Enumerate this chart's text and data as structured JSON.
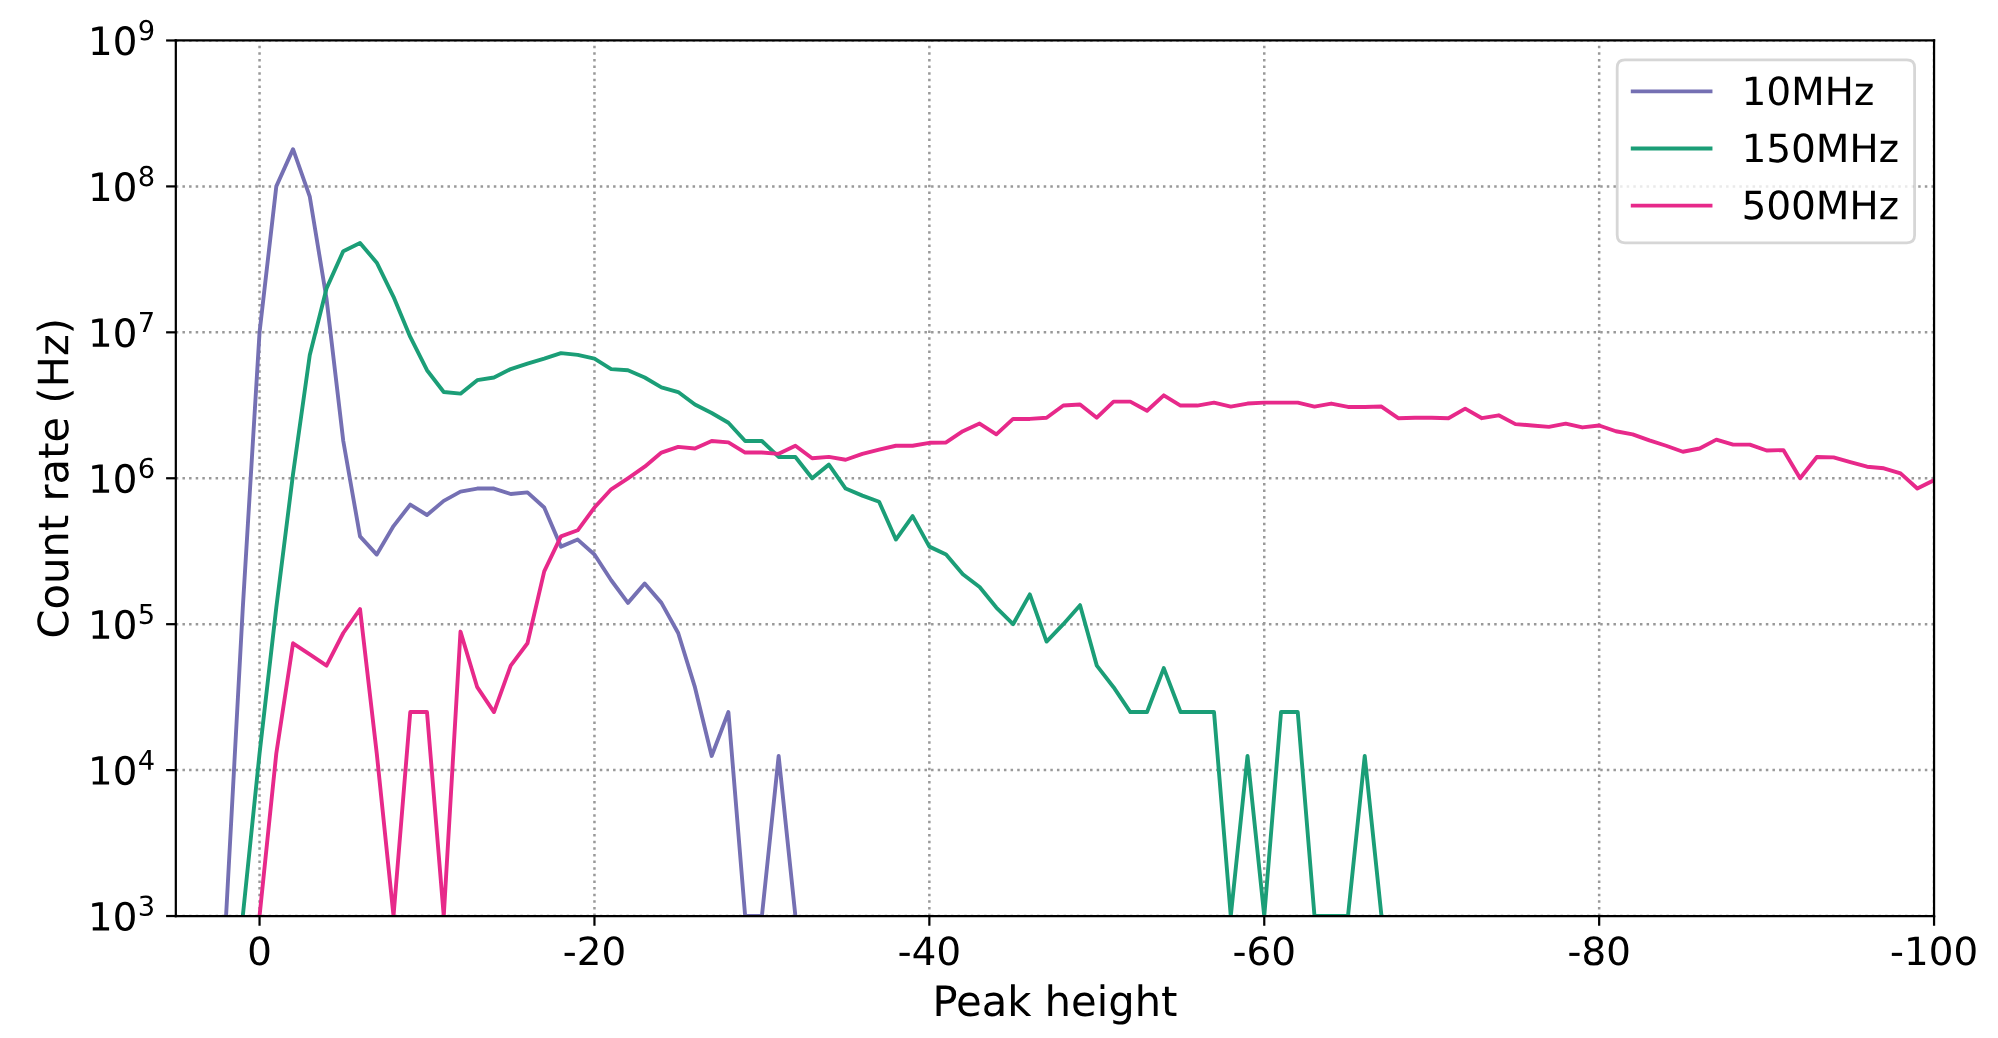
{
  "chart_data": {
    "type": "line",
    "xlabel": "Peak height",
    "ylabel": "Count rate (Hz)",
    "log": "y",
    "grid": true,
    "legend": "top right",
    "line_style": "solid",
    "marker": "none",
    "xlim": [
      5,
      -100
    ],
    "xticks": [
      0,
      -20,
      -40,
      -60,
      -80,
      -100
    ],
    "ylim": [
      1000,
      1000000000
    ],
    "yticks": [
      {
        "value": 1000,
        "label": "10$^{3}$"
      },
      {
        "value": 10000,
        "label": "10$^{4}$"
      },
      {
        "value": 100000,
        "label": "10$^{5}$"
      },
      {
        "value": 1000000,
        "label": "10$^{6}$"
      },
      {
        "value": 10000000,
        "label": "10$^{7}$"
      },
      {
        "value": 100000000,
        "label": "10$^{8}$"
      },
      {
        "value": 1000000000,
        "label": "10$^{9}$"
      }
    ],
    "series": [
      {
        "name": "10MHz",
        "color": "#7570b3",
        "x": [
          2,
          1,
          0,
          -1,
          -2,
          -3,
          -4,
          -5,
          -6,
          -7,
          -8,
          -9,
          -10,
          -11,
          -12,
          -13,
          -14,
          -15,
          -16,
          -17,
          -18,
          -19,
          -20,
          -21,
          -22,
          -23,
          -24,
          -25,
          -26,
          -27,
          -28,
          -29,
          -30,
          -31,
          -32
        ],
        "values": [
          1000,
          130000,
          10000000,
          100000000,
          180000000,
          85000000,
          17000000,
          1800000,
          400000,
          300000,
          470000,
          660000,
          560000,
          700000,
          810000,
          850000,
          850000,
          780000,
          800000,
          630000,
          340000,
          380000,
          300000,
          200000,
          140000,
          190000,
          140000,
          87000,
          37000,
          12500,
          25000,
          1000,
          1000,
          12500,
          1000
        ]
      },
      {
        "name": "150MHz",
        "color": "#1b9e77",
        "x": [
          1,
          0,
          -1,
          -2,
          -3,
          -4,
          -5,
          -6,
          -7,
          -8,
          -9,
          -10,
          -11,
          -12,
          -13,
          -14,
          -15,
          -16,
          -17,
          -18,
          -19,
          -20,
          -21,
          -22,
          -23,
          -24,
          -25,
          -26,
          -27,
          -28,
          -29,
          -30,
          -31,
          -32,
          -33,
          -34,
          -35,
          -36,
          -37,
          -38,
          -39,
          -40,
          -41,
          -42,
          -43,
          -44,
          -45,
          -46,
          -47,
          -48,
          -49,
          -50,
          -51,
          -52,
          -53,
          -54,
          -55,
          -56,
          -57,
          -58,
          -59,
          -60,
          -61,
          -62,
          -63,
          -64,
          -65,
          -66,
          -67
        ],
        "values": [
          1000,
          13000,
          130000,
          1070000,
          7000000,
          20000000,
          36000000,
          41000000,
          30000000,
          17500000,
          9300000,
          5500000,
          3900000,
          3800000,
          4700000,
          4900000,
          5600000,
          6100000,
          6600000,
          7200000,
          7000000,
          6600000,
          5600000,
          5500000,
          4900000,
          4200000,
          3900000,
          3200000,
          2800000,
          2400000,
          1800000,
          1800000,
          1400000,
          1400000,
          1000000,
          1240000,
          850000,
          760000,
          690000,
          380000,
          550000,
          340000,
          300000,
          220000,
          180000,
          130000,
          100000,
          160000,
          76000,
          100000,
          135000,
          52000,
          37000,
          25000,
          25000,
          50000,
          25000,
          25000,
          25000,
          1000,
          12500,
          1000,
          25000,
          25000,
          1000,
          1000,
          1000,
          12500,
          1000
        ]
      },
      {
        "name": "500MHz",
        "color": "#e7298a",
        "x": [
          0,
          -1,
          -2,
          -3,
          -4,
          -5,
          -6,
          -7,
          -8,
          -9,
          -10,
          -11,
          -12,
          -13,
          -14,
          -15,
          -16,
          -17,
          -18,
          -19,
          -20,
          -21,
          -22,
          -23,
          -24,
          -25,
          -26,
          -27,
          -28,
          -29,
          -30,
          -31,
          -32,
          -33,
          -34,
          -35,
          -36,
          -37,
          -38,
          -39,
          -40,
          -41,
          -42,
          -43,
          -44,
          -45,
          -46,
          -47,
          -48,
          -49,
          -50,
          -51,
          -52,
          -53,
          -54,
          -55,
          -56,
          -57,
          -58,
          -59,
          -60,
          -61,
          -62,
          -63,
          -64,
          -65,
          -66,
          -67,
          -68,
          -69,
          -70,
          -71,
          -72,
          -73,
          -74,
          -75,
          -76,
          -77,
          -78,
          -79,
          -80,
          -81,
          -82,
          -83,
          -84,
          -85,
          -86,
          -87,
          -88,
          -89,
          -90,
          -91,
          -92,
          -93,
          -94,
          -95,
          -96,
          -97,
          -98,
          -99,
          -100
        ],
        "values": [
          1000,
          13000,
          74000,
          62000,
          52000,
          87000,
          127000,
          13000,
          1000,
          25000,
          25000,
          1000,
          89000,
          37000,
          25000,
          52000,
          74000,
          230000,
          400000,
          440000,
          630000,
          840000,
          1000000,
          1200000,
          1500000,
          1640000,
          1600000,
          1800000,
          1760000,
          1500000,
          1500000,
          1470000,
          1670000,
          1370000,
          1400000,
          1340000,
          1470000,
          1570000,
          1670000,
          1670000,
          1750000,
          1760000,
          2100000,
          2370000,
          2000000,
          2550000,
          2550000,
          2600000,
          3150000,
          3200000,
          2600000,
          3350000,
          3350000,
          2900000,
          3700000,
          3150000,
          3150000,
          3300000,
          3100000,
          3250000,
          3300000,
          3300000,
          3300000,
          3100000,
          3250000,
          3080000,
          3080000,
          3100000,
          2580000,
          2600000,
          2600000,
          2580000,
          3000000,
          2580000,
          2700000,
          2350000,
          2300000,
          2250000,
          2370000,
          2230000,
          2300000,
          2100000,
          2000000,
          1820000,
          1670000,
          1520000,
          1600000,
          1840000,
          1700000,
          1700000,
          1550000,
          1560000,
          1000000,
          1400000,
          1390000,
          1290000,
          1200000,
          1170000,
          1080000,
          850000,
          970000
        ]
      }
    ]
  }
}
